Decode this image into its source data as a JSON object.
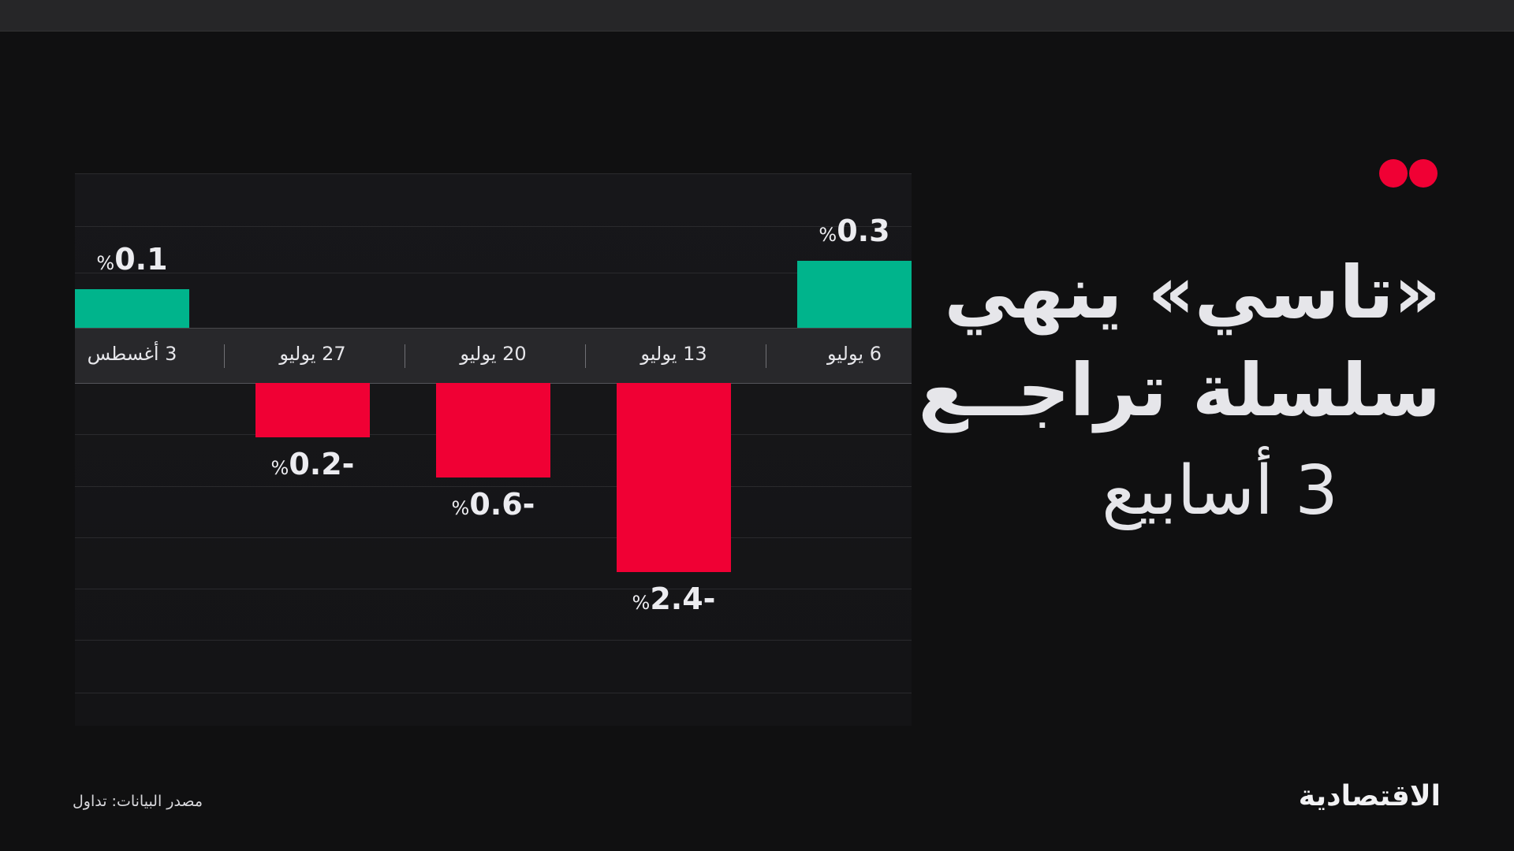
{
  "title": {
    "line1": "«تاسي» ينهي",
    "line2": "سلسلة تراجــع",
    "line3": "3 أسابيع"
  },
  "colors": {
    "positive": "#00b48c",
    "negative": "#f00034",
    "accent_dots": "#f00034",
    "background": "#101011"
  },
  "chart_data": {
    "type": "bar",
    "categories": [
      "3 أغسطس",
      "27 يوليو",
      "20 يوليو",
      "13 يوليو",
      "6 يوليو"
    ],
    "values": [
      0.1,
      -0.2,
      -0.6,
      -2.4,
      0.3
    ],
    "labels": [
      "%0.1",
      "%0.2-",
      "%0.6-",
      "%2.4-",
      "%0.3"
    ],
    "unit": "%",
    "grid": true
  },
  "footer": {
    "source": "مصدر البيانات: تداول",
    "logo": "الاقتصادية"
  }
}
